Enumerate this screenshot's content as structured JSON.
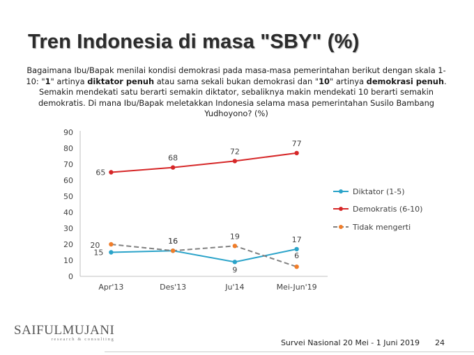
{
  "slide": {
    "title": "Tren Indonesia di masa \"SBY\" (%)",
    "question_parts": [
      {
        "text": "Bagaimana Ibu/Bapak menilai kondisi demokrasi pada masa-masa pemerintahan berikut dengan skala 1-10: \"",
        "bold": false
      },
      {
        "text": "1",
        "bold": true
      },
      {
        "text": "\" artinya ",
        "bold": false
      },
      {
        "text": "diktator  penuh",
        "bold": true
      },
      {
        "text": " atau sama sekali bukan demokrasi dan \"",
        "bold": false
      },
      {
        "text": "10",
        "bold": true
      },
      {
        "text": "\" artinya ",
        "bold": false
      },
      {
        "text": "demokrasi penuh",
        "bold": true
      },
      {
        "text": ". Semakin mendekati satu berarti semakin diktator, sebaliknya makin mendekati 10 berarti semakin demokratis. Di mana Ibu/Bapak meletakkan Indonesia selama masa pemerintahan Susilo Bambang Yudhoyono? (%)",
        "bold": false
      }
    ],
    "logo_main": "SAIFULMUJANI",
    "logo_sub": "research & consulting",
    "footer_text": "Survei Nasional 20 Mei - 1 Juni 2019",
    "page_number": "24"
  },
  "chart_data": {
    "type": "line",
    "categories": [
      "Apr'13",
      "Des'13",
      "Ju'14",
      "Mei-Jun'19"
    ],
    "ylim": [
      0,
      90
    ],
    "yticks": [
      0,
      10,
      20,
      30,
      40,
      50,
      60,
      70,
      80,
      90
    ],
    "grid": false,
    "legend_position": "right",
    "series": [
      {
        "name": "Diktator (1-5)",
        "values": [
          15,
          16,
          9,
          17
        ],
        "color": "#2aa3c9",
        "dashed": false
      },
      {
        "name": "Demokratis (6-10)",
        "values": [
          65,
          68,
          72,
          77
        ],
        "color": "#d62728",
        "dashed": false
      },
      {
        "name": "Tidak mengerti",
        "values": [
          20,
          16,
          19,
          6
        ],
        "color": "#808080",
        "marker_color": "#f07d2a",
        "dashed": true
      }
    ]
  }
}
